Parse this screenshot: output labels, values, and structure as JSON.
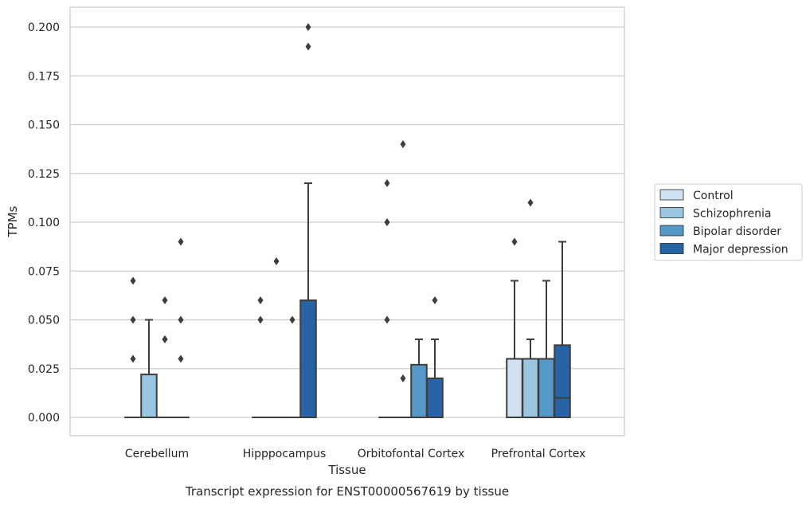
{
  "chart_data": {
    "type": "boxplot",
    "title": "",
    "caption": "Transcript expression for ENST00000567619 by tissue",
    "xlabel": "Tissue",
    "ylabel": "TPMs",
    "ylim": [
      -0.01,
      0.21
    ],
    "yticks": [
      "0.000",
      "0.025",
      "0.050",
      "0.075",
      "0.100",
      "0.125",
      "0.150",
      "0.175",
      "0.200"
    ],
    "grid": "horizontal",
    "legend_position": "right",
    "categories": [
      "Cerebellum",
      "Hipppocampus",
      "Orbitofontal Cortex",
      "Prefrontal Cortex"
    ],
    "series": [
      {
        "name": "Control",
        "color": "#d0e1f2",
        "boxes": [
          {
            "q1": 0,
            "median": 0,
            "q3": 0,
            "whisker_low": 0,
            "whisker_high": 0,
            "outliers": [
              0.03,
              0.05,
              0.07
            ]
          },
          {
            "q1": 0,
            "median": 0,
            "q3": 0,
            "whisker_low": 0,
            "whisker_high": 0,
            "outliers": [
              0.05,
              0.06
            ]
          },
          {
            "q1": 0,
            "median": 0,
            "q3": 0,
            "whisker_low": 0,
            "whisker_high": 0,
            "outliers": [
              0.05,
              0.1,
              0.12
            ]
          },
          {
            "q1": 0,
            "median": 0,
            "q3": 0.03,
            "whisker_low": 0,
            "whisker_high": 0.07,
            "outliers": [
              0.09
            ]
          }
        ]
      },
      {
        "name": "Schizophrenia",
        "color": "#9ac5e0",
        "boxes": [
          {
            "q1": 0,
            "median": 0,
            "q3": 0.022,
            "whisker_low": 0,
            "whisker_high": 0.05,
            "outliers": []
          },
          {
            "q1": 0,
            "median": 0,
            "q3": 0,
            "whisker_low": 0,
            "whisker_high": 0,
            "outliers": [
              0.08
            ]
          },
          {
            "q1": 0,
            "median": 0,
            "q3": 0,
            "whisker_low": 0,
            "whisker_high": 0,
            "outliers": [
              0.02,
              0.14
            ]
          },
          {
            "q1": 0,
            "median": 0,
            "q3": 0.03,
            "whisker_low": 0,
            "whisker_high": 0.04,
            "outliers": [
              0.11
            ]
          }
        ]
      },
      {
        "name": "Bipolar disorder",
        "color": "#5698c7",
        "boxes": [
          {
            "q1": 0,
            "median": 0,
            "q3": 0,
            "whisker_low": 0,
            "whisker_high": 0,
            "outliers": [
              0.04,
              0.04,
              0.06
            ]
          },
          {
            "q1": 0,
            "median": 0,
            "q3": 0,
            "whisker_low": 0,
            "whisker_high": 0,
            "outliers": [
              0.05
            ]
          },
          {
            "q1": 0,
            "median": 0,
            "q3": 0.027,
            "whisker_low": 0,
            "whisker_high": 0.04,
            "outliers": []
          },
          {
            "q1": 0,
            "median": 0,
            "q3": 0.03,
            "whisker_low": 0,
            "whisker_high": 0.07,
            "outliers": []
          }
        ]
      },
      {
        "name": "Major depression",
        "color": "#2664a6",
        "boxes": [
          {
            "q1": 0,
            "median": 0,
            "q3": 0,
            "whisker_low": 0,
            "whisker_high": 0,
            "outliers": [
              0.03,
              0.05,
              0.09
            ]
          },
          {
            "q1": 0,
            "median": 0,
            "q3": 0.06,
            "whisker_low": 0,
            "whisker_high": 0.12,
            "outliers": [
              0.19,
              0.2
            ]
          },
          {
            "q1": 0,
            "median": 0,
            "q3": 0.02,
            "whisker_low": 0,
            "whisker_high": 0.04,
            "outliers": [
              0.06
            ]
          },
          {
            "q1": 0,
            "median": 0.01,
            "q3": 0.037,
            "whisker_low": 0,
            "whisker_high": 0.09,
            "outliers": []
          }
        ]
      }
    ]
  }
}
